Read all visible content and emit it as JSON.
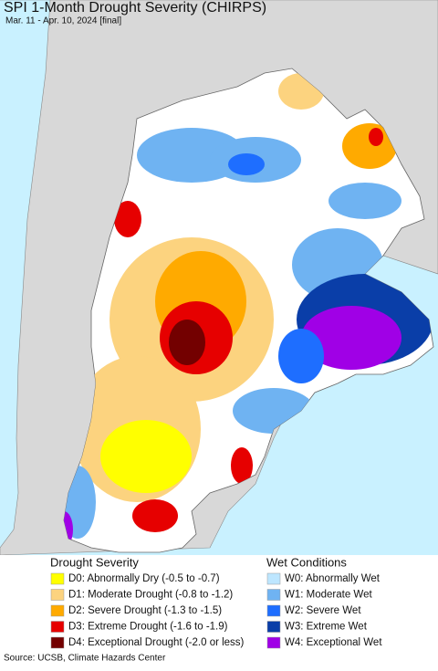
{
  "header": {
    "title": "SPI 1-Month Drought Severity (CHIRPS)",
    "subtitle": "Mar. 11 - Apr. 10, 2024 [final]"
  },
  "legend": {
    "drought": {
      "title": "Drought Severity",
      "items": [
        {
          "label": "D0: Abnormally Dry (-0.5 to -0.7)",
          "color": "#ffff00"
        },
        {
          "label": "D1: Moderate Drought (-0.8 to -1.2)",
          "color": "#fcd37f"
        },
        {
          "label": "D2: Severe Drought (-1.3 to -1.5)",
          "color": "#ffaa00"
        },
        {
          "label": "D3: Extreme Drought (-1.6 to -1.9)",
          "color": "#e60000"
        },
        {
          "label": "D4: Exceptional Drought (-2.0 or less)",
          "color": "#730000"
        }
      ]
    },
    "wet": {
      "title": "Wet Conditions",
      "items": [
        {
          "label": "W0: Abnormally Wet",
          "color": "#bde6ff"
        },
        {
          "label": "W1: Moderate Wet",
          "color": "#6fb3f2"
        },
        {
          "label": "W2: Severe Wet",
          "color": "#1e6eff"
        },
        {
          "label": "W3: Extreme Wet",
          "color": "#0a3ea8"
        },
        {
          "label": "W4: Exceptional Wet",
          "color": "#a000e6"
        }
      ]
    }
  },
  "footer": {
    "source": "Source: UCSB, Climate Hazards Center"
  }
}
